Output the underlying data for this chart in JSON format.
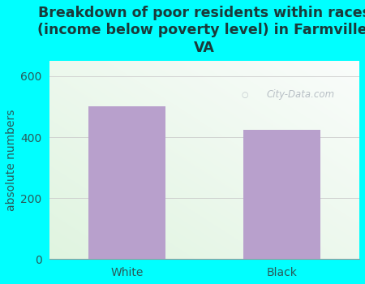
{
  "categories": [
    "White",
    "Black"
  ],
  "values": [
    500,
    425
  ],
  "bar_color": "#b8a0cc",
  "title": "Breakdown of poor residents within races\n(income below poverty level) in Farmville,\nVA",
  "ylabel": "absolute numbers",
  "ylim": [
    0,
    650
  ],
  "yticks": [
    0,
    200,
    400,
    600
  ],
  "background_color": "#00ffff",
  "title_color": "#1a3a3a",
  "axis_label_color": "#2a5a5a",
  "tick_color": "#2a5a5a",
  "watermark": "City-Data.com",
  "title_fontsize": 12.5,
  "ylabel_fontsize": 10,
  "tick_fontsize": 10,
  "gradient_bl": [
    0.878,
    0.957,
    0.878
  ],
  "gradient_tr": [
    0.98,
    0.99,
    0.985
  ]
}
